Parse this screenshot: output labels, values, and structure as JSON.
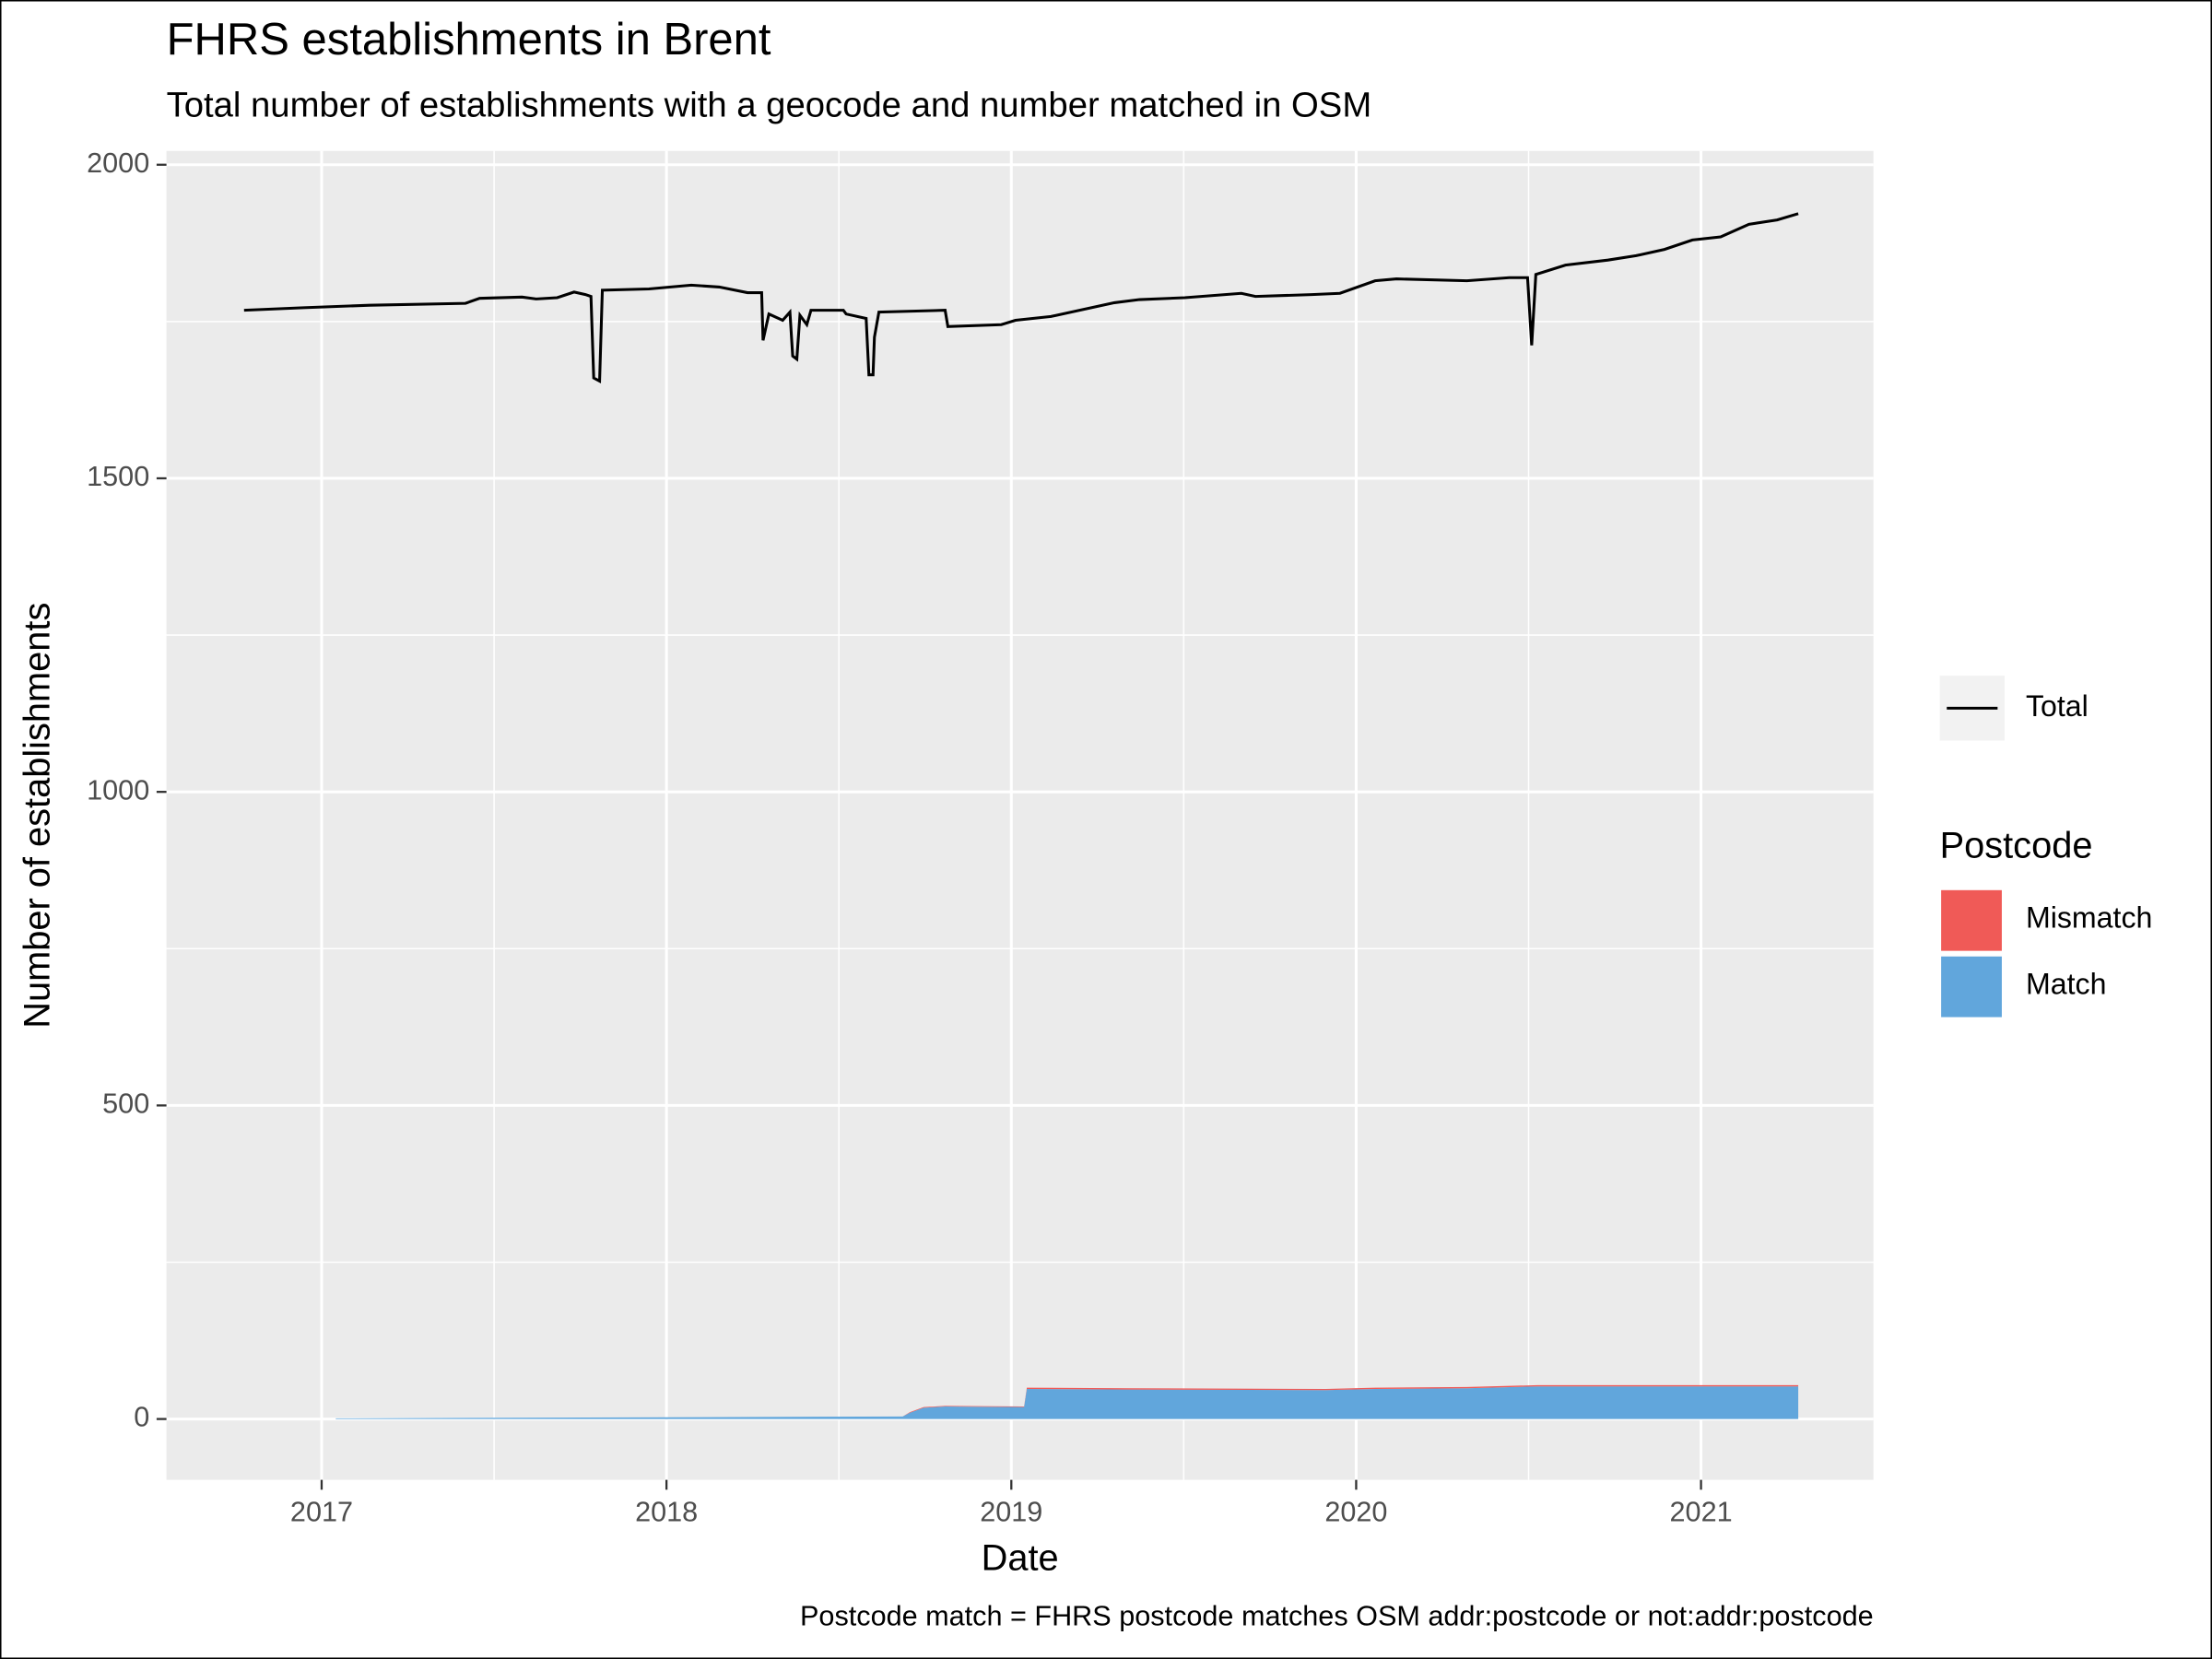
{
  "chart_data": [
    {
      "type": "line",
      "title": "FHRS establishments in Brent",
      "subtitle": "Total number of establishments with a geocode and number matched in OSM",
      "x_label": "Date",
      "y_label": "Number of establishments",
      "caption": "Postcode match = FHRS postcode matches OSM addr:postcode or not:addr:postcode",
      "xlim": [
        2016.55,
        2021.5
      ],
      "xticks": [
        2017,
        2018,
        2019,
        2020,
        2021
      ],
      "ylim": [
        -97,
        2022
      ],
      "yticks": [
        0,
        500,
        1000,
        1500,
        2000
      ],
      "grid": true,
      "x": [
        2016.775,
        2016.947,
        2017.139,
        2017.417,
        2017.458,
        2017.581,
        2017.622,
        2017.683,
        2017.732,
        2017.765,
        2017.781,
        2017.789,
        2017.806,
        2017.814,
        2017.949,
        2018.072,
        2018.153,
        2018.235,
        2018.276,
        2018.28,
        2018.297,
        2018.337,
        2018.358,
        2018.366,
        2018.378,
        2018.387,
        2018.407,
        2018.419,
        2018.513,
        2018.521,
        2018.579,
        2018.587,
        2018.599,
        2018.603,
        2018.616,
        2018.808,
        2018.816,
        2018.971,
        2019.012,
        2019.115,
        2019.299,
        2019.372,
        2019.503,
        2019.667,
        2019.708,
        2019.871,
        2019.953,
        2020.055,
        2020.117,
        2020.321,
        2020.444,
        2020.497,
        2020.509,
        2020.521,
        2020.607,
        2020.73,
        2020.812,
        2020.894,
        2020.975,
        2021.057,
        2021.139,
        2021.221,
        2021.282
      ],
      "series": [
        {
          "name": "Total",
          "color": "#000000",
          "values": [
            1768,
            1772,
            1776,
            1779,
            1787,
            1789,
            1786,
            1788,
            1797,
            1793,
            1790,
            1660,
            1655,
            1800,
            1802,
            1808,
            1805,
            1796,
            1796,
            1720,
            1762,
            1752,
            1765,
            1695,
            1690,
            1760,
            1745,
            1768,
            1768,
            1762,
            1755,
            1665,
            1665,
            1725,
            1765,
            1768,
            1742,
            1745,
            1752,
            1758,
            1780,
            1785,
            1788,
            1795,
            1790,
            1793,
            1795,
            1815,
            1818,
            1815,
            1820,
            1820,
            1712,
            1825,
            1840,
            1848,
            1855,
            1865,
            1880,
            1885,
            1905,
            1912,
            1922
          ]
        }
      ]
    },
    {
      "type": "area",
      "legend_title": "Postcode",
      "x": [
        2017.041,
        2017.54,
        2018.685,
        2018.706,
        2018.746,
        2018.808,
        2019.037,
        2019.045,
        2019.339,
        2019.912,
        2020.055,
        2020.321,
        2020.526,
        2020.894,
        2021.282
      ],
      "series": [
        {
          "name": "Mismatch",
          "color": "#F05A57",
          "values": [
            0,
            0,
            0,
            1,
            1,
            1,
            1,
            2,
            2,
            2,
            2,
            2,
            2,
            2,
            2
          ]
        },
        {
          "name": "Match",
          "color": "#61A6DC",
          "values": [
            1,
            2,
            4,
            10,
            18,
            20,
            19,
            48,
            47,
            46,
            48,
            49,
            52,
            52,
            52
          ]
        }
      ]
    }
  ]
}
